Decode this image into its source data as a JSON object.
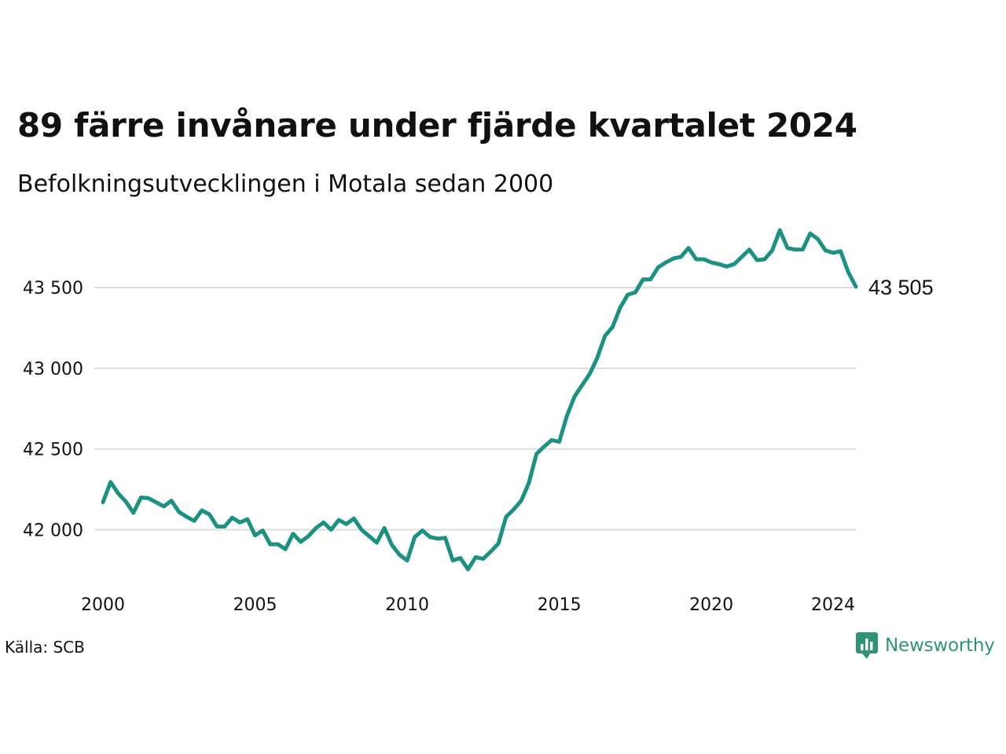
{
  "title": "89 färre invånare under fjärde kvartalet 2024",
  "subtitle": "Befolkningsutvecklingen i Motala sedan 2000",
  "source": "Källa: SCB",
  "brand": {
    "name": "Newsworthy",
    "icon": "newsworthy-logo-icon",
    "color": "#2f9477"
  },
  "chart_data": {
    "type": "line",
    "title": "89 färre invånare under fjärde kvartalet 2024",
    "xlabel": "",
    "ylabel": "",
    "x_ticks": [
      2000,
      2005,
      2010,
      2015,
      2020,
      2024
    ],
    "y_ticks": [
      42000,
      42500,
      43000,
      43500
    ],
    "y_tick_labels": [
      "42 000",
      "42 500",
      "43 000",
      "43 500"
    ],
    "xlim": [
      2000,
      2024.75
    ],
    "ylim": [
      41730,
      43870
    ],
    "grid": true,
    "line_color": "#1a9181",
    "last_label": "43 505",
    "series": [
      {
        "x_start": 2000.0,
        "x_step": 0.25,
        "values": [
          42170,
          42295,
          42225,
          42175,
          42105,
          42200,
          42195,
          42170,
          42145,
          42180,
          42110,
          42080,
          42055,
          42120,
          42095,
          42020,
          42020,
          42075,
          42045,
          42065,
          41965,
          41995,
          41910,
          41910,
          41880,
          41975,
          41925,
          41960,
          42010,
          42045,
          42000,
          42060,
          42035,
          42070,
          42000,
          41960,
          41920,
          42010,
          41905,
          41845,
          41810,
          41955,
          41995,
          41955,
          41945,
          41950,
          41810,
          41825,
          41755,
          41830,
          41820,
          41865,
          41915,
          42080,
          42125,
          42180,
          42290,
          42470,
          42515,
          42555,
          42545,
          42705,
          42825,
          42895,
          42965,
          43065,
          43200,
          43255,
          43375,
          43455,
          43470,
          43550,
          43550,
          43625,
          43655,
          43680,
          43690,
          43745,
          43675,
          43675,
          43655,
          43645,
          43630,
          43645,
          43690,
          43735,
          43670,
          43675,
          43730,
          43855,
          43745,
          43735,
          43735,
          43835,
          43800,
          43730,
          43715,
          43725,
          43595,
          43505
        ]
      }
    ]
  }
}
